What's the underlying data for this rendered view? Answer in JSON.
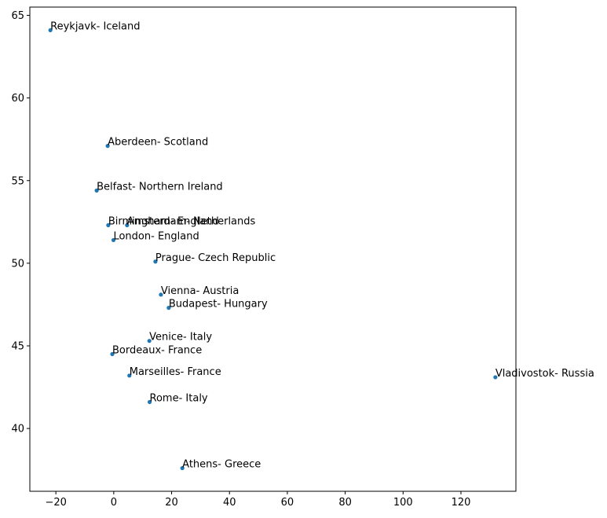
{
  "chart_data": {
    "type": "scatter",
    "title": "",
    "xlabel": "",
    "ylabel": "",
    "xlim": [
      -29,
      139
    ],
    "ylim": [
      36.2,
      65.5
    ],
    "xticks": [
      -20,
      0,
      20,
      40,
      60,
      80,
      100,
      120
    ],
    "yticks": [
      40,
      45,
      50,
      55,
      60,
      65
    ],
    "grid": false,
    "marker_color": "#1f77b4",
    "points": [
      {
        "label": "Reykjavk- Iceland",
        "x": -21.9,
        "y": 64.1
      },
      {
        "label": "Aberdeen- Scotland",
        "x": -2.1,
        "y": 57.1
      },
      {
        "label": "Belfast- Northern Ireland",
        "x": -5.9,
        "y": 54.4
      },
      {
        "label": "Birmingham- England",
        "x": -1.9,
        "y": 52.3
      },
      {
        "label": "Amsterdam- Netherlands",
        "x": 4.6,
        "y": 52.3
      },
      {
        "label": "London- England",
        "x": -0.1,
        "y": 51.4
      },
      {
        "label": "Prague- Czech Republic",
        "x": 14.4,
        "y": 50.1
      },
      {
        "label": "Vienna- Austria",
        "x": 16.3,
        "y": 48.1
      },
      {
        "label": "Budapest- Hungary",
        "x": 19.0,
        "y": 47.3
      },
      {
        "label": "Venice- Italy",
        "x": 12.3,
        "y": 45.3
      },
      {
        "label": "Bordeaux- France",
        "x": -0.5,
        "y": 44.5
      },
      {
        "label": "Marseilles- France",
        "x": 5.4,
        "y": 43.2
      },
      {
        "label": "Vladivostok- Russia",
        "x": 131.9,
        "y": 43.1
      },
      {
        "label": "Rome- Italy",
        "x": 12.4,
        "y": 41.6
      },
      {
        "label": "Athens- Greece",
        "x": 23.7,
        "y": 37.6
      }
    ]
  }
}
